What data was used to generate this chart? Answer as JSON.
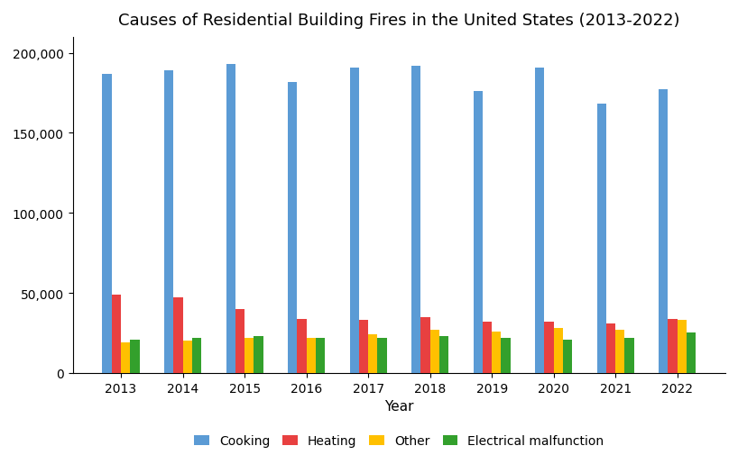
{
  "title": "Causes of Residential Building Fires in the United States (2013-2022)",
  "years": [
    2013,
    2014,
    2015,
    2016,
    2017,
    2018,
    2019,
    2020,
    2021,
    2022
  ],
  "categories": [
    "Cooking",
    "Heating",
    "Other",
    "Electrical malfunction"
  ],
  "colors": [
    "#5B9BD5",
    "#E84040",
    "#FFC000",
    "#33A02C"
  ],
  "data": {
    "Cooking": [
      187000,
      189000,
      193000,
      182000,
      191000,
      192000,
      176000,
      191000,
      168000,
      177000
    ],
    "Heating": [
      49000,
      47000,
      40000,
      34000,
      33000,
      35000,
      32000,
      32000,
      31000,
      34000
    ],
    "Other": [
      19000,
      20000,
      22000,
      22000,
      24000,
      27000,
      26000,
      28000,
      27000,
      33000
    ],
    "Electrical malfunction": [
      21000,
      22000,
      23000,
      22000,
      22000,
      23000,
      22000,
      21000,
      22000,
      25000
    ]
  },
  "xlabel": "Year",
  "ylabel": "",
  "ylim": [
    0,
    210000
  ],
  "yticks": [
    0,
    50000,
    100000,
    150000,
    200000
  ],
  "ytick_labels": [
    "0",
    "50,000",
    "100,000",
    "150,000",
    "200,000"
  ],
  "legend_ncol": 4,
  "background_color": "#FFFFFF",
  "title_fontsize": 13,
  "axis_fontsize": 11,
  "tick_fontsize": 10,
  "legend_fontsize": 10,
  "bar_width": 0.15
}
